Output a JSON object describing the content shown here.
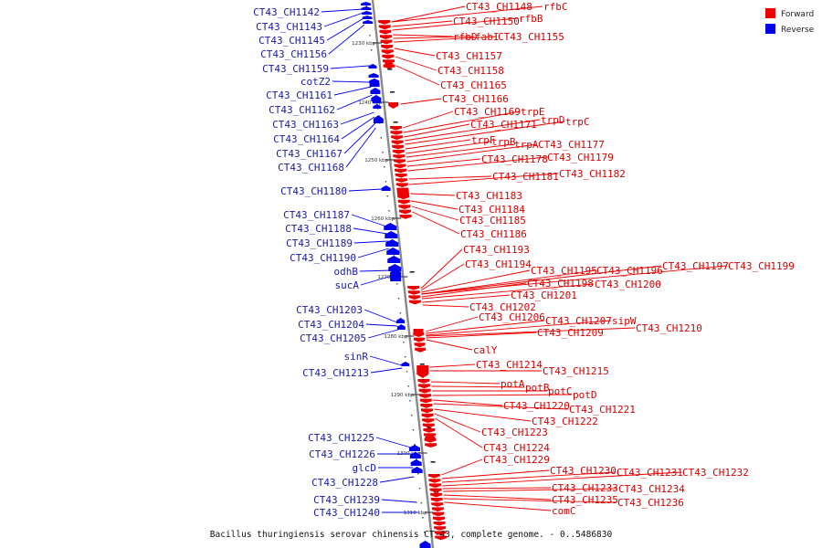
{
  "title": "Bacillus thuringiensis serovar chinensis CT-43, complete genome. - 0..5486830",
  "legend": [
    {
      "label": "Forward",
      "color": "#ee0000"
    },
    {
      "label": "Reverse",
      "color": "#0000ee"
    }
  ],
  "colors": {
    "forward": "#ee0000",
    "reverse": "#0000ee",
    "backbone": "#888888",
    "forward_text": "#d40000",
    "reverse_text": "#1a1aa6"
  },
  "ticks": [
    "1230 kbp",
    "1240 kbp",
    "1250 kbp",
    "1260 kbp",
    "1270 kbp",
    "1280 kbp",
    "1290 kbp",
    "1300 kbp",
    "1310 kbp"
  ],
  "reverse_labels": [
    "CT43_CH1142",
    "CT43_CH1143",
    "CT43_CH1145",
    "CT43_CH1156",
    "CT43_CH1159",
    "cotZ2",
    "CT43_CH1161",
    "CT43_CH1162",
    "CT43_CH1163",
    "CT43_CH1164",
    "CT43_CH1167",
    "CT43_CH1168",
    "CT43_CH1180",
    "CT43_CH1187",
    "CT43_CH1188",
    "CT43_CH1189",
    "CT43_CH1190",
    "odhB",
    "sucA",
    "CT43_CH1203",
    "CT43_CH1204",
    "CT43_CH1205",
    "sinR",
    "CT43_CH1213",
    "CT43_CH1225",
    "CT43_CH1226",
    "glcD",
    "CT43_CH1228",
    "CT43_CH1239",
    "CT43_CH1240"
  ],
  "forward_labels": [
    "CT43_CH1148",
    "rfbC",
    "CT43_CH1150",
    "rfbB",
    "rfbD",
    "fabI",
    "CT43_CH1155",
    "CT43_CH1157",
    "CT43_CH1158",
    "CT43_CH1165",
    "CT43_CH1166",
    "CT43_CH1169",
    "trpE",
    "CT43_CH1171",
    "trpD",
    "trpC",
    "trpF",
    "trpB",
    "trpA",
    "CT43_CH1177",
    "CT43_CH1178",
    "CT43_CH1179",
    "CT43_CH1181",
    "CT43_CH1182",
    "CT43_CH1183",
    "CT43_CH1184",
    "CT43_CH1185",
    "CT43_CH1186",
    "CT43_CH1193",
    "CT43_CH1194",
    "CT43_CH1195",
    "CT43_CH1196",
    "CT43_CH1197",
    "CT43_CH1199",
    "CT43_CH1198",
    "CT43_CH1200",
    "CT43_CH1201",
    "CT43_CH1202",
    "CT43_CH1206",
    "CT43_CH1207",
    "sipW",
    "CT43_CH1210",
    "CT43_CH1209",
    "calY",
    "CT43_CH1214",
    "CT43_CH1215",
    "potA",
    "potB",
    "potC",
    "potD",
    "CT43_CH1220",
    "CT43_CH1221",
    "CT43_CH1222",
    "CT43_CH1223",
    "CT43_CH1224",
    "CT43_CH1229",
    "CT43_CH1230",
    "CT43_CH1231",
    "CT43_CH1232",
    "CT43_CH1233",
    "CT43_CH1234",
    "CT43_CH1235",
    "CT43_CH1236",
    "comC"
  ]
}
